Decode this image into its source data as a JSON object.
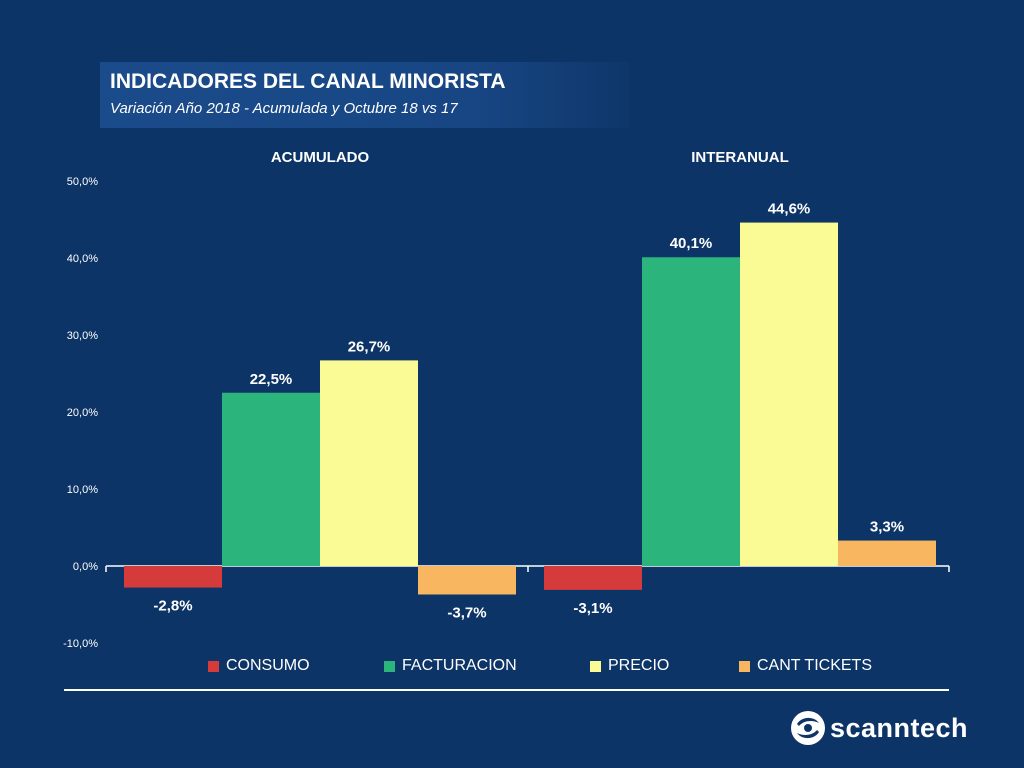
{
  "header": {
    "title": "INDICADORES DEL CANAL MINORISTA",
    "subtitle": "Variación Año 2018 - Acumulada y Octubre 18 vs 17"
  },
  "chart_data": {
    "type": "bar",
    "categories": [
      "ACUMULADO",
      "INTERANUAL"
    ],
    "series": [
      {
        "name": "CONSUMO",
        "color": "#d63b3b",
        "values": [
          -2.8,
          -3.1
        ],
        "labels": [
          "-2,8%",
          "-3,1%"
        ]
      },
      {
        "name": "FACTURACION",
        "color": "#2bb47c",
        "values": [
          22.5,
          40.1
        ],
        "labels": [
          "22,5%",
          "40,1%"
        ]
      },
      {
        "name": "PRECIO",
        "color": "#fbfb96",
        "values": [
          26.7,
          44.6
        ],
        "labels": [
          "26,7%",
          "44,6%"
        ]
      },
      {
        "name": "CANT TICKETS",
        "color": "#f8b660",
        "values": [
          -3.7,
          3.3
        ],
        "labels": [
          "-3,7%",
          "3,3%"
        ]
      }
    ],
    "ylim": [
      -10,
      50
    ],
    "yticks": [
      {
        "value": 50,
        "label": "50,0%"
      },
      {
        "value": 40,
        "label": "40,0%"
      },
      {
        "value": 30,
        "label": "30,0%"
      },
      {
        "value": 20,
        "label": "20,0%"
      },
      {
        "value": 10,
        "label": "10,0%"
      },
      {
        "value": 0,
        "label": "0,0%"
      },
      {
        "value": -10,
        "label": "-10,0%"
      }
    ],
    "grid": false,
    "legend_position": "bottom"
  },
  "branding": {
    "logo_text": "scanntech"
  },
  "colors": {
    "background": "#0d3466",
    "title_box": "#1a4b8a"
  }
}
